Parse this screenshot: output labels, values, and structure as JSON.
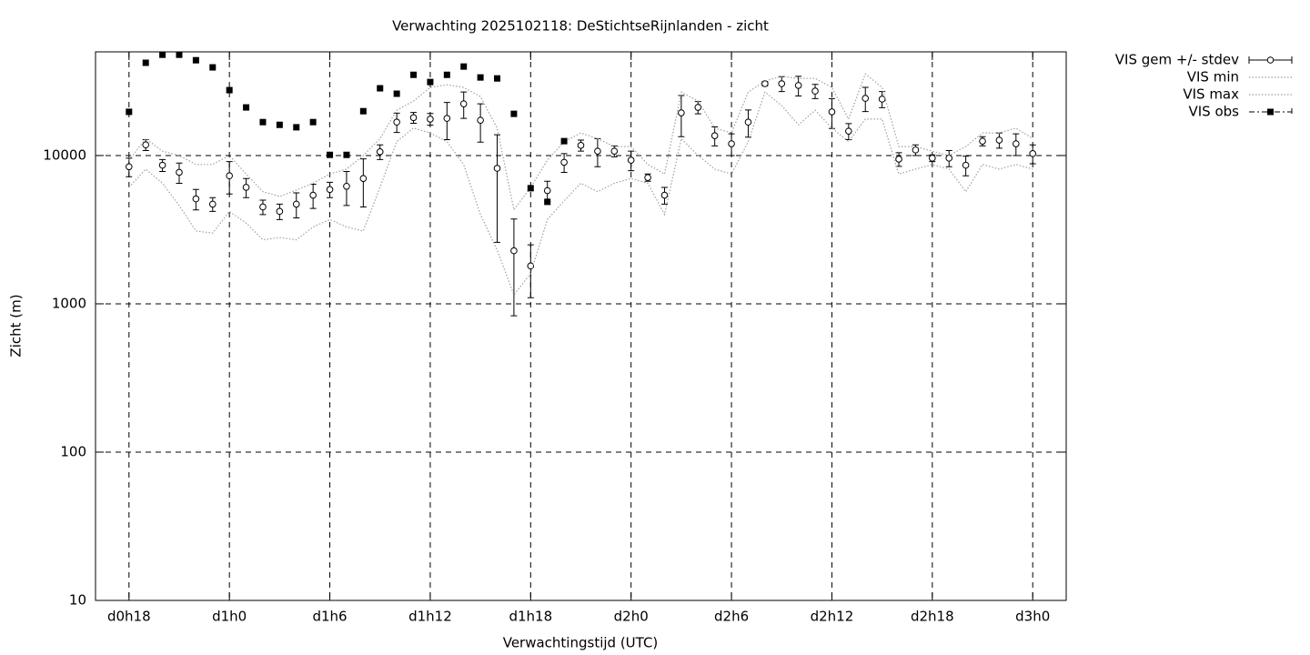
{
  "chart_data": {
    "type": "errorbar",
    "title": "Verwachting 2025102118: DeStichtseRijnlanden - zicht",
    "x_label": "Verwachtingstijd (UTC)",
    "y_label": "Zicht (m)",
    "y_scale": "log",
    "grid": true,
    "legend": "outside-top-right",
    "xlim": [
      16,
      74
    ],
    "ylim": [
      10,
      50000
    ],
    "xticks": [
      {
        "value": 18,
        "label": "d0h18"
      },
      {
        "value": 24,
        "label": "d1h0"
      },
      {
        "value": 30,
        "label": "d1h6"
      },
      {
        "value": 36,
        "label": "d1h12"
      },
      {
        "value": 42,
        "label": "d1h18"
      },
      {
        "value": 48,
        "label": "d2h0"
      },
      {
        "value": 54,
        "label": "d2h6"
      },
      {
        "value": 60,
        "label": "d2h12"
      },
      {
        "value": 66,
        "label": "d2h18"
      },
      {
        "value": 72,
        "label": "d3h0"
      }
    ],
    "yticks": [
      10,
      100,
      1000,
      10000
    ],
    "x": [
      18,
      19,
      20,
      21,
      22,
      23,
      24,
      25,
      26,
      27,
      28,
      29,
      30,
      31,
      32,
      33,
      34,
      35,
      36,
      37,
      38,
      39,
      40,
      41,
      42,
      43,
      44,
      45,
      46,
      47,
      48,
      49,
      50,
      51,
      52,
      53,
      54,
      55,
      56,
      57,
      58,
      59,
      60,
      61,
      62,
      63,
      64,
      65,
      66,
      67,
      68,
      69,
      70,
      71,
      72
    ],
    "series": [
      {
        "name": "VIS gem +/- stdev",
        "color": "#000000",
        "style": "circle-errorbar",
        "values": [
          8400,
          11800,
          8600,
          7700,
          5100,
          4700,
          7300,
          6100,
          4500,
          4200,
          4700,
          5400,
          5900,
          6200,
          7000,
          10600,
          16800,
          18000,
          17600,
          17800,
          22300,
          17300,
          8200,
          2280,
          1800,
          5800,
          9000,
          11700,
          10700,
          10700,
          9300,
          7100,
          5400,
          19400,
          21100,
          13600,
          12000,
          16800,
          30500,
          30500,
          29700,
          27200,
          19700,
          14600,
          24300,
          24000,
          9450,
          10900,
          9600,
          9600,
          8600,
          12500,
          12700,
          12000,
          10300
        ],
        "errors": [
          1200,
          1000,
          800,
          1200,
          800,
          500,
          1800,
          900,
          500,
          500,
          900,
          1000,
          700,
          1600,
          2500,
          1200,
          2500,
          1500,
          1600,
          5000,
          4500,
          5000,
          5600,
          1450,
          700,
          900,
          1300,
          1000,
          2300,
          900,
          1400,
          400,
          700,
          6000,
          2000,
          2000,
          2000,
          3500,
          1000,
          3500,
          4500,
          3000,
          4500,
          1800,
          4500,
          3000,
          1000,
          900,
          500,
          1200,
          1300,
          900,
          1500,
          2000,
          1500
        ]
      },
      {
        "name": "VIS min",
        "color": "#a0a0a0",
        "style": "dotted-line",
        "values": [
          6100,
          8100,
          6500,
          4600,
          3100,
          3000,
          4200,
          3500,
          2700,
          2800,
          2700,
          3300,
          3700,
          3300,
          3100,
          6100,
          12400,
          15300,
          14200,
          12400,
          8700,
          4000,
          2300,
          1150,
          1600,
          3700,
          4950,
          6500,
          5700,
          6500,
          7000,
          6500,
          4000,
          13000,
          10000,
          8100,
          7500,
          12400,
          26800,
          21700,
          16100,
          20200,
          15300,
          12400,
          17600,
          17600,
          7500,
          8100,
          8700,
          8100,
          5700,
          8700,
          8100,
          8700,
          8100
        ]
      },
      {
        "name": "VIS max",
        "color": "#a0a0a0",
        "style": "dotted-line",
        "values": [
          9300,
          13000,
          10700,
          10000,
          8700,
          8700,
          10000,
          7500,
          5700,
          5300,
          5850,
          6500,
          7500,
          8100,
          10000,
          13000,
          20200,
          23300,
          28800,
          30000,
          28800,
          25000,
          15300,
          4300,
          6100,
          9300,
          12400,
          14200,
          13000,
          11500,
          11500,
          8700,
          7500,
          26800,
          23300,
          15300,
          14200,
          26800,
          31800,
          34200,
          33100,
          33100,
          28800,
          17600,
          35500,
          28800,
          11500,
          11500,
          10700,
          10000,
          11500,
          14200,
          14200,
          15300,
          13000
        ]
      },
      {
        "name": "VIS obs",
        "color": "#000000",
        "style": "square",
        "values": [
          19700,
          42200,
          47800,
          47800,
          43900,
          39300,
          27600,
          21100,
          16800,
          16100,
          15500,
          16800,
          10100,
          10100,
          19900,
          28400,
          26100,
          35000,
          31300,
          35000,
          39800,
          33600,
          33100,
          19100,
          6020,
          4870,
          12500,
          null,
          null,
          null,
          null,
          null,
          null,
          null,
          null,
          null,
          null,
          null,
          null,
          null,
          null,
          null,
          null,
          null,
          null,
          null,
          null,
          null,
          null,
          null,
          null,
          null,
          null,
          null,
          null
        ]
      }
    ]
  }
}
